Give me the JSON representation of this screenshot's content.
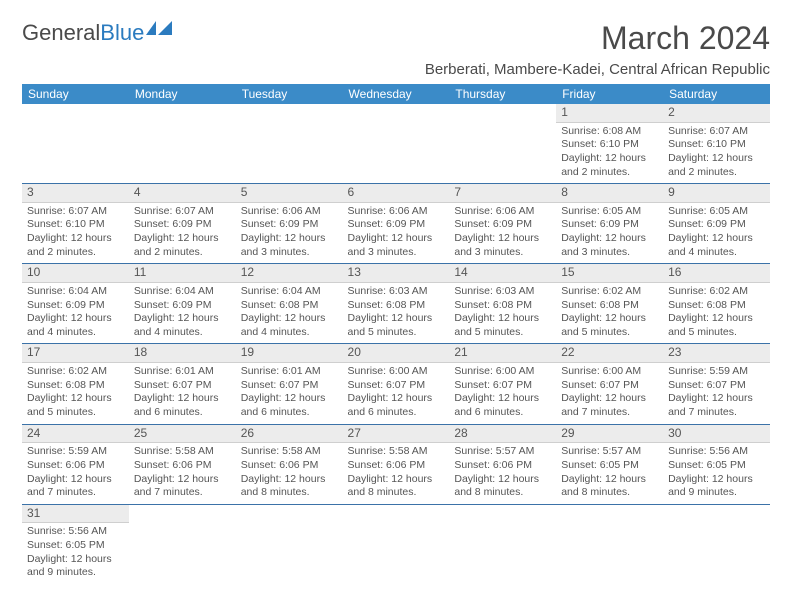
{
  "logo": {
    "text_general": "General",
    "text_blue": "Blue"
  },
  "title": "March 2024",
  "subtitle": "Berberati, Mambere-Kadei, Central African Republic",
  "colors": {
    "header_bg": "#3b8bc8",
    "header_text": "#ffffff",
    "row_border": "#3b72a8",
    "daynum_bg": "#ececec",
    "daynum_border": "#cfcfcf",
    "text": "#555555",
    "logo_blue": "#2b7bbf"
  },
  "day_headers": [
    "Sunday",
    "Monday",
    "Tuesday",
    "Wednesday",
    "Thursday",
    "Friday",
    "Saturday"
  ],
  "weeks": [
    [
      null,
      null,
      null,
      null,
      null,
      {
        "num": "1",
        "sunrise": "Sunrise: 6:08 AM",
        "sunset": "Sunset: 6:10 PM",
        "daylight1": "Daylight: 12 hours",
        "daylight2": "and 2 minutes."
      },
      {
        "num": "2",
        "sunrise": "Sunrise: 6:07 AM",
        "sunset": "Sunset: 6:10 PM",
        "daylight1": "Daylight: 12 hours",
        "daylight2": "and 2 minutes."
      }
    ],
    [
      {
        "num": "3",
        "sunrise": "Sunrise: 6:07 AM",
        "sunset": "Sunset: 6:10 PM",
        "daylight1": "Daylight: 12 hours",
        "daylight2": "and 2 minutes."
      },
      {
        "num": "4",
        "sunrise": "Sunrise: 6:07 AM",
        "sunset": "Sunset: 6:09 PM",
        "daylight1": "Daylight: 12 hours",
        "daylight2": "and 2 minutes."
      },
      {
        "num": "5",
        "sunrise": "Sunrise: 6:06 AM",
        "sunset": "Sunset: 6:09 PM",
        "daylight1": "Daylight: 12 hours",
        "daylight2": "and 3 minutes."
      },
      {
        "num": "6",
        "sunrise": "Sunrise: 6:06 AM",
        "sunset": "Sunset: 6:09 PM",
        "daylight1": "Daylight: 12 hours",
        "daylight2": "and 3 minutes."
      },
      {
        "num": "7",
        "sunrise": "Sunrise: 6:06 AM",
        "sunset": "Sunset: 6:09 PM",
        "daylight1": "Daylight: 12 hours",
        "daylight2": "and 3 minutes."
      },
      {
        "num": "8",
        "sunrise": "Sunrise: 6:05 AM",
        "sunset": "Sunset: 6:09 PM",
        "daylight1": "Daylight: 12 hours",
        "daylight2": "and 3 minutes."
      },
      {
        "num": "9",
        "sunrise": "Sunrise: 6:05 AM",
        "sunset": "Sunset: 6:09 PM",
        "daylight1": "Daylight: 12 hours",
        "daylight2": "and 4 minutes."
      }
    ],
    [
      {
        "num": "10",
        "sunrise": "Sunrise: 6:04 AM",
        "sunset": "Sunset: 6:09 PM",
        "daylight1": "Daylight: 12 hours",
        "daylight2": "and 4 minutes."
      },
      {
        "num": "11",
        "sunrise": "Sunrise: 6:04 AM",
        "sunset": "Sunset: 6:09 PM",
        "daylight1": "Daylight: 12 hours",
        "daylight2": "and 4 minutes."
      },
      {
        "num": "12",
        "sunrise": "Sunrise: 6:04 AM",
        "sunset": "Sunset: 6:08 PM",
        "daylight1": "Daylight: 12 hours",
        "daylight2": "and 4 minutes."
      },
      {
        "num": "13",
        "sunrise": "Sunrise: 6:03 AM",
        "sunset": "Sunset: 6:08 PM",
        "daylight1": "Daylight: 12 hours",
        "daylight2": "and 5 minutes."
      },
      {
        "num": "14",
        "sunrise": "Sunrise: 6:03 AM",
        "sunset": "Sunset: 6:08 PM",
        "daylight1": "Daylight: 12 hours",
        "daylight2": "and 5 minutes."
      },
      {
        "num": "15",
        "sunrise": "Sunrise: 6:02 AM",
        "sunset": "Sunset: 6:08 PM",
        "daylight1": "Daylight: 12 hours",
        "daylight2": "and 5 minutes."
      },
      {
        "num": "16",
        "sunrise": "Sunrise: 6:02 AM",
        "sunset": "Sunset: 6:08 PM",
        "daylight1": "Daylight: 12 hours",
        "daylight2": "and 5 minutes."
      }
    ],
    [
      {
        "num": "17",
        "sunrise": "Sunrise: 6:02 AM",
        "sunset": "Sunset: 6:08 PM",
        "daylight1": "Daylight: 12 hours",
        "daylight2": "and 5 minutes."
      },
      {
        "num": "18",
        "sunrise": "Sunrise: 6:01 AM",
        "sunset": "Sunset: 6:07 PM",
        "daylight1": "Daylight: 12 hours",
        "daylight2": "and 6 minutes."
      },
      {
        "num": "19",
        "sunrise": "Sunrise: 6:01 AM",
        "sunset": "Sunset: 6:07 PM",
        "daylight1": "Daylight: 12 hours",
        "daylight2": "and 6 minutes."
      },
      {
        "num": "20",
        "sunrise": "Sunrise: 6:00 AM",
        "sunset": "Sunset: 6:07 PM",
        "daylight1": "Daylight: 12 hours",
        "daylight2": "and 6 minutes."
      },
      {
        "num": "21",
        "sunrise": "Sunrise: 6:00 AM",
        "sunset": "Sunset: 6:07 PM",
        "daylight1": "Daylight: 12 hours",
        "daylight2": "and 6 minutes."
      },
      {
        "num": "22",
        "sunrise": "Sunrise: 6:00 AM",
        "sunset": "Sunset: 6:07 PM",
        "daylight1": "Daylight: 12 hours",
        "daylight2": "and 7 minutes."
      },
      {
        "num": "23",
        "sunrise": "Sunrise: 5:59 AM",
        "sunset": "Sunset: 6:07 PM",
        "daylight1": "Daylight: 12 hours",
        "daylight2": "and 7 minutes."
      }
    ],
    [
      {
        "num": "24",
        "sunrise": "Sunrise: 5:59 AM",
        "sunset": "Sunset: 6:06 PM",
        "daylight1": "Daylight: 12 hours",
        "daylight2": "and 7 minutes."
      },
      {
        "num": "25",
        "sunrise": "Sunrise: 5:58 AM",
        "sunset": "Sunset: 6:06 PM",
        "daylight1": "Daylight: 12 hours",
        "daylight2": "and 7 minutes."
      },
      {
        "num": "26",
        "sunrise": "Sunrise: 5:58 AM",
        "sunset": "Sunset: 6:06 PM",
        "daylight1": "Daylight: 12 hours",
        "daylight2": "and 8 minutes."
      },
      {
        "num": "27",
        "sunrise": "Sunrise: 5:58 AM",
        "sunset": "Sunset: 6:06 PM",
        "daylight1": "Daylight: 12 hours",
        "daylight2": "and 8 minutes."
      },
      {
        "num": "28",
        "sunrise": "Sunrise: 5:57 AM",
        "sunset": "Sunset: 6:06 PM",
        "daylight1": "Daylight: 12 hours",
        "daylight2": "and 8 minutes."
      },
      {
        "num": "29",
        "sunrise": "Sunrise: 5:57 AM",
        "sunset": "Sunset: 6:05 PM",
        "daylight1": "Daylight: 12 hours",
        "daylight2": "and 8 minutes."
      },
      {
        "num": "30",
        "sunrise": "Sunrise: 5:56 AM",
        "sunset": "Sunset: 6:05 PM",
        "daylight1": "Daylight: 12 hours",
        "daylight2": "and 9 minutes."
      }
    ],
    [
      {
        "num": "31",
        "sunrise": "Sunrise: 5:56 AM",
        "sunset": "Sunset: 6:05 PM",
        "daylight1": "Daylight: 12 hours",
        "daylight2": "and 9 minutes."
      },
      null,
      null,
      null,
      null,
      null,
      null
    ]
  ]
}
